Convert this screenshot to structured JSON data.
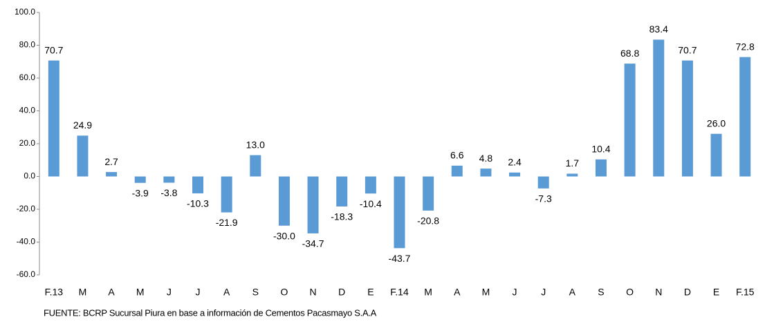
{
  "chart_data": {
    "type": "bar",
    "categories": [
      "F.13",
      "M",
      "A",
      "M",
      "J",
      "J",
      "A",
      "S",
      "O",
      "N",
      "D",
      "E",
      "F.14",
      "M",
      "A",
      "M",
      "J",
      "J",
      "A",
      "S",
      "O",
      "N",
      "D",
      "E",
      "F.15"
    ],
    "values": [
      70.7,
      24.9,
      2.7,
      -3.9,
      -3.8,
      -10.3,
      -21.9,
      13.0,
      -30.0,
      -34.7,
      -18.3,
      -10.4,
      -43.7,
      -20.8,
      6.6,
      4.8,
      2.4,
      -7.3,
      1.7,
      10.4,
      68.8,
      83.4,
      70.7,
      26.0,
      72.8
    ],
    "value_labels": [
      "70.7",
      "24.9",
      "2.7",
      "-3.9",
      "-3.8",
      "-10.3",
      "-21.9",
      "13.0",
      "-30.0",
      "-34.7",
      "-18.3",
      "-10.4",
      "-43.7",
      "-20.8",
      "6.6",
      "4.8",
      "2.4",
      "-7.3",
      "1.7",
      "10.4",
      "68.8",
      "83.4",
      "70.7",
      "26.0",
      "72.8"
    ],
    "color": "#5b9bd5",
    "ylim": [
      -60,
      100
    ],
    "yticks": [
      {
        "value": -60,
        "label": "-60.0"
      },
      {
        "value": -40,
        "label": "-40.0"
      },
      {
        "value": -20,
        "label": "-20.0"
      },
      {
        "value": 0,
        "label": "0.0"
      },
      {
        "value": 20,
        "label": "20.0"
      },
      {
        "value": 40,
        "label": "40.0"
      },
      {
        "value": 60,
        "label": "60.0"
      },
      {
        "value": 80,
        "label": "80.0"
      },
      {
        "value": 100,
        "label": "100.0"
      }
    ],
    "source": "FUENTE:  BCRP Sucursal Piura en base a información de Cementos Pacasmayo S.A.A"
  }
}
